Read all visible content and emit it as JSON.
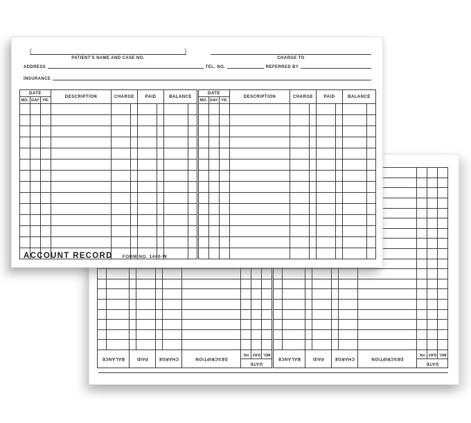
{
  "colors": {
    "paper": "#ffffff",
    "line": "#3a3a3a",
    "text": "#222222"
  },
  "table_headers": {
    "date": "DATE",
    "mo": "MO.",
    "day": "DAY",
    "yr": "YR.",
    "description": "DESCRIPTION",
    "charge": "CHARGE",
    "paid": "PAID",
    "balance": "BALANCE"
  },
  "front_card": {
    "open_paren": "(",
    "close_paren": ")",
    "patient_line_label": "PATIENT'S NAME AND CASE NO.",
    "charge_to_label": "CHARGE TO",
    "address_label": "ADDRESS",
    "tel_label": "TEL. NO.",
    "referred_by_label": "REFERRED BY",
    "insurance_label": "INSURANCE",
    "footer_title": "ACCOUNT RECORD",
    "footer_form_no": "FORM NO. 1440-W",
    "table": {
      "halves": 2,
      "data_rows": 14
    }
  },
  "back_card": {
    "table": {
      "halves": 2,
      "data_rows": 18
    }
  }
}
